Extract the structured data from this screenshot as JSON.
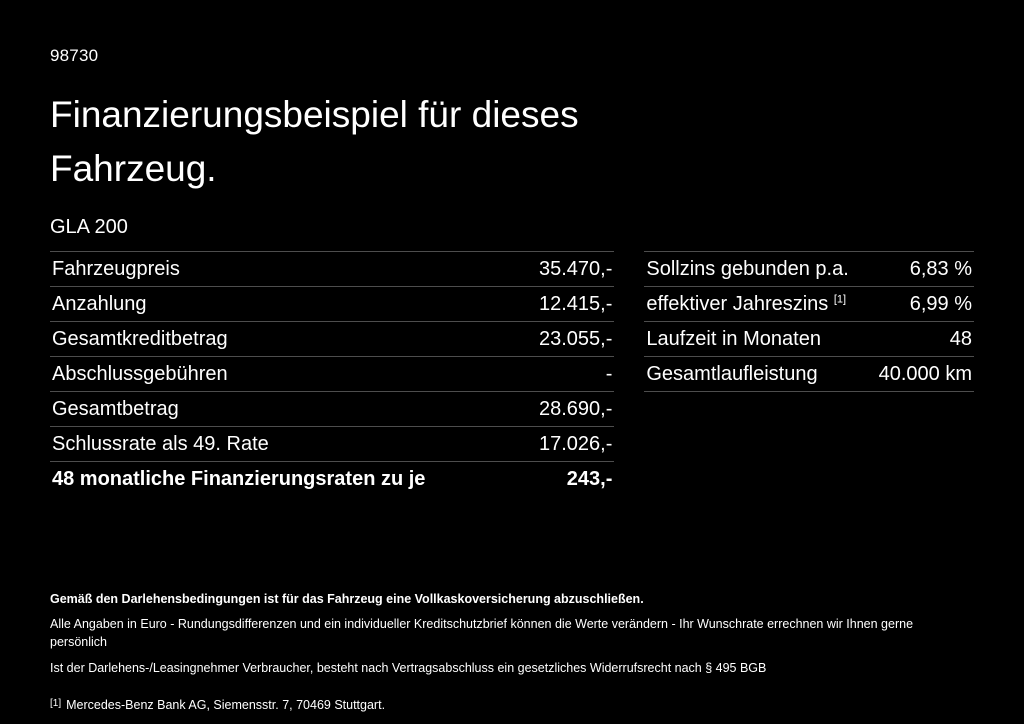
{
  "page": {
    "code": "98730",
    "title": "Finanzierungsbeispiel für dieses Fahrzeug.",
    "model": "GLA 200"
  },
  "left_table": {
    "rows": [
      {
        "label": "Fahrzeugpreis",
        "value": "35.470,-"
      },
      {
        "label": "Anzahlung",
        "value": "12.415,-"
      },
      {
        "label": "Gesamtkreditbetrag",
        "value": "23.055,-"
      },
      {
        "label": "Abschlussgebühren",
        "value": "-"
      },
      {
        "label": "Gesamtbetrag",
        "value": "28.690,-"
      },
      {
        "label": "Schlussrate als 49. Rate",
        "value": "17.026,-"
      },
      {
        "label": "48 monatliche Finanzierungsraten zu je",
        "value": "243,-"
      }
    ]
  },
  "right_table": {
    "rows": [
      {
        "label": "Sollzins gebunden p.a.",
        "sup": "",
        "value": "6,83 %"
      },
      {
        "label": "effektiver Jahreszins",
        "sup": "[1]",
        "value": "6,99 %"
      },
      {
        "label": "Laufzeit in Monaten",
        "sup": "",
        "value": "48"
      },
      {
        "label": "Gesamtlaufleistung",
        "sup": "",
        "value": "40.000 km"
      }
    ]
  },
  "footer": {
    "bold_note": "Gemäß den Darlehensbedingungen ist für das Fahrzeug eine Vollkaskoversicherung abzuschließen.",
    "note_line1": "Alle Angaben in Euro - Rundungsdifferenzen und ein individueller Kreditschutzbrief können die Werte verändern - Ihr Wunschrate errechnen wir Ihnen gerne persönlich",
    "note_line2": "Ist der Darlehens-/Leasingnehmer Verbraucher, besteht nach Vertragsabschluss ein gesetzliches Widerrufsrecht nach § 495 BGB",
    "footnote_marker": "[1]",
    "footnote_text": "Mercedes-Benz Bank AG, Siemensstr. 7, 70469 Stuttgart."
  }
}
